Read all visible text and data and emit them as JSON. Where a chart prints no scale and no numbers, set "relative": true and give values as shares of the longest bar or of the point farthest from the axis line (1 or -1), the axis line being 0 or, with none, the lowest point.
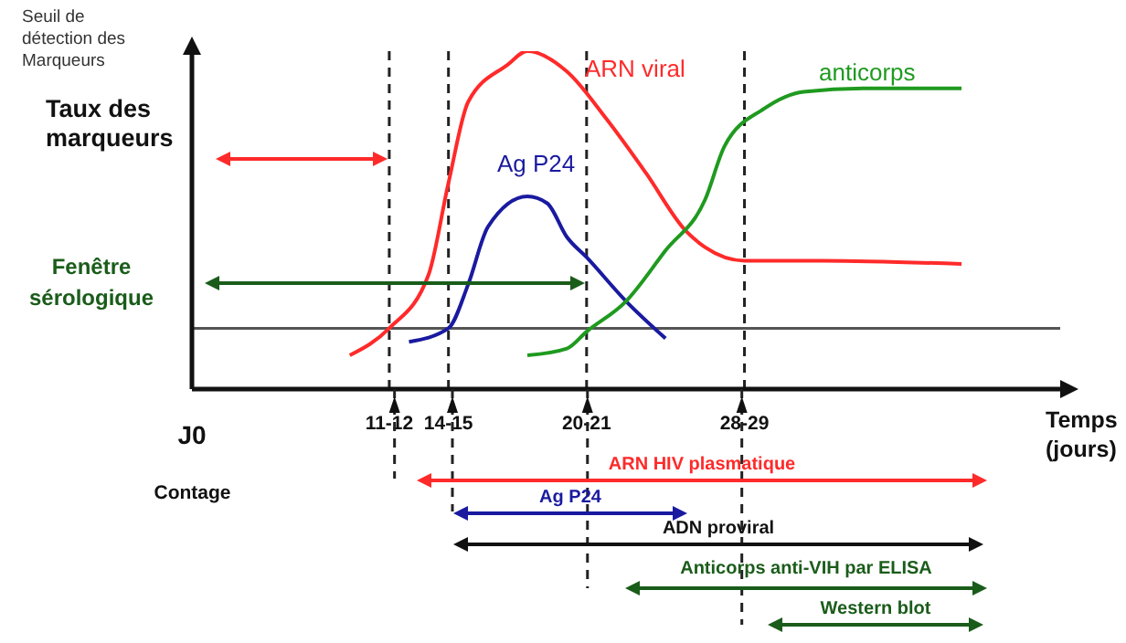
{
  "chart_data": {
    "type": "line",
    "relative": true,
    "ylabel": "Taux des marqueurs",
    "xlabel": "Temps (jours)",
    "categories": [
      "J0",
      null,
      null,
      null,
      null,
      null,
      null,
      null,
      null,
      null,
      "11-12",
      null,
      null,
      "14-15",
      null,
      null,
      null,
      null,
      null,
      null,
      "20-21",
      null,
      null,
      null,
      null,
      null,
      null,
      null,
      "28-29",
      null,
      null,
      null,
      null,
      null,
      null,
      null,
      null,
      null,
      null,
      null,
      null,
      null,
      null,
      null,
      null
    ],
    "series": [
      {
        "name": "ARN viral",
        "color": "#ff2a2a",
        "values": [
          null,
          null,
          null,
          null,
          null,
          null,
          null,
          null,
          0.1,
          null,
          0.18,
          null,
          0.34,
          0.61,
          0.85,
          null,
          0.96,
          1.0,
          null,
          0.94,
          null,
          0.8,
          null,
          0.64,
          null,
          0.47,
          0.42,
          null,
          0.38,
          null,
          null,
          null,
          0.38,
          null,
          null,
          null,
          null,
          null,
          null,
          0.37,
          null,
          null,
          null,
          null,
          null
        ]
      },
      {
        "name": "Ag P24",
        "color": "#1a1aa0",
        "values": [
          null,
          null,
          null,
          null,
          null,
          null,
          null,
          null,
          null,
          null,
          null,
          0.14,
          null,
          0.18,
          0.31,
          0.48,
          null,
          0.57,
          0.55,
          0.45,
          0.39,
          null,
          0.26,
          null,
          0.15,
          null,
          null,
          null,
          null,
          null,
          null,
          null,
          null,
          null,
          null,
          null,
          null,
          null,
          null,
          null,
          null,
          null,
          null,
          null,
          null
        ]
      },
      {
        "name": "anticorps",
        "color": "#1f9a1f",
        "values": [
          null,
          null,
          null,
          null,
          null,
          null,
          null,
          null,
          null,
          null,
          null,
          null,
          null,
          null,
          null,
          null,
          null,
          0.1,
          null,
          0.12,
          0.17,
          null,
          0.26,
          null,
          0.41,
          null,
          0.56,
          0.72,
          null,
          0.83,
          null,
          0.88,
          null,
          null,
          0.89,
          null,
          null,
          null,
          null,
          0.89,
          null,
          null,
          null,
          null,
          null
        ]
      }
    ],
    "ref_lines": [
      {
        "axis": "y",
        "value": 0.18,
        "label": "Seuil de détection des Marqueurs",
        "color": "#555555"
      },
      {
        "axis": "x",
        "value": "11-12",
        "label": null,
        "color": "#222222",
        "line_style": "dashed"
      },
      {
        "axis": "x",
        "value": "14-15",
        "label": null,
        "color": "#222222",
        "line_style": "dashed"
      },
      {
        "axis": "x",
        "value": "20-21",
        "label": null,
        "color": "#222222",
        "line_style": "dashed"
      },
      {
        "axis": "x",
        "value": "28-29",
        "label": null,
        "color": "#222222",
        "line_style": "dashed"
      }
    ],
    "annotations": [
      "Contage",
      "Fenêtre sérologique",
      "ARN HIV plasmatique",
      "Ag P24",
      "ADN proviral",
      "Anticorps anti-VIH par ELISA",
      "Western blot"
    ],
    "grid": false,
    "legend": false,
    "marker": "none",
    "line_style": "solid"
  }
}
